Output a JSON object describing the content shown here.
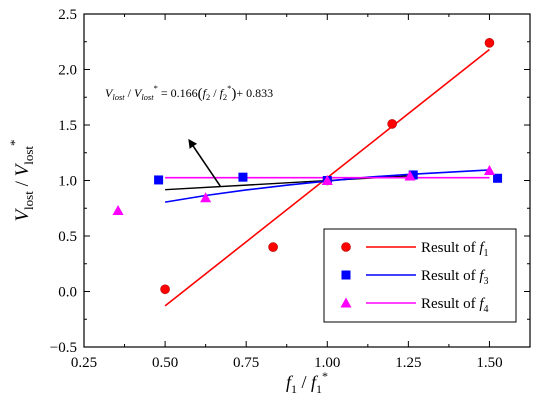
{
  "chart_data": {
    "type": "scatter",
    "xlabel": {
      "base": "f",
      "sub1": "1",
      "mid": " / ",
      "base2": "f",
      "sub2": "1",
      "sup2": "*"
    },
    "ylabel": {
      "base": "V",
      "sub1": "lost",
      "mid": " / ",
      "base2": "V",
      "sub2": "lost",
      "sup2": "*"
    },
    "xlim": [
      0.25,
      1.625
    ],
    "ylim": [
      -0.5,
      2.5
    ],
    "xticks": [
      0.25,
      0.5,
      0.75,
      1.0,
      1.25,
      1.5
    ],
    "xtick_labels": [
      "0.25",
      "0.50",
      "0.75",
      "1.00",
      "1.25",
      "1.50"
    ],
    "yticks": [
      -0.5,
      0.0,
      0.5,
      1.0,
      1.5,
      2.0,
      2.5
    ],
    "ytick_labels": [
      "−0.5",
      "0.0",
      "0.5",
      "1.0",
      "1.5",
      "2.0",
      "2.5"
    ],
    "grid": false,
    "legend_position": "bottom-right",
    "series": [
      {
        "name": "Result of f1",
        "legend": {
          "prefix": "Result of ",
          "var": "f",
          "sub": "1"
        },
        "color": "#ff0000",
        "marker": "circle",
        "points": {
          "x": [
            0.5,
            0.833,
            1.0,
            1.2,
            1.5
          ],
          "y": [
            0.02,
            0.4,
            1.0,
            1.51,
            2.24
          ]
        },
        "fit": {
          "kind": "linear",
          "x": [
            0.5,
            1.5
          ],
          "y": [
            -0.13,
            2.18
          ]
        }
      },
      {
        "name": "Result of f3",
        "legend": {
          "prefix": "Result of ",
          "var": "f",
          "sub": "3"
        },
        "color": "#0000ff",
        "marker": "square",
        "points": {
          "x": [
            0.48,
            0.74,
            1.0,
            1.265,
            1.525
          ],
          "y": [
            1.005,
            1.03,
            1.0,
            1.05,
            1.02
          ]
        },
        "fit": {
          "kind": "curve",
          "x": [
            0.5,
            0.625,
            0.75,
            0.875,
            1.0,
            1.125,
            1.25,
            1.375,
            1.5
          ],
          "y": [
            0.805,
            0.865,
            0.915,
            0.958,
            0.995,
            1.03,
            1.055,
            1.075,
            1.095
          ]
        }
      },
      {
        "name": "Result of f4",
        "legend": {
          "prefix": "Result of ",
          "var": "f",
          "sub": "4"
        },
        "color": "#ff00ff",
        "marker": "triangle",
        "points": {
          "x": [
            0.355,
            0.625,
            1.0,
            1.255,
            1.5
          ],
          "y": [
            0.73,
            0.845,
            1.0,
            1.04,
            1.09
          ]
        },
        "fit": {
          "kind": "linear",
          "x": [
            0.5,
            1.5
          ],
          "y": [
            1.025,
            1.025
          ]
        }
      }
    ],
    "extra_line": {
      "color": "#000000",
      "x": [
        0.5,
        1.25
      ],
      "y": [
        0.917,
        1.041
      ]
    },
    "annotation": {
      "prefix_lhs": "V",
      "lhs_sub": "lost",
      "slash": " / ",
      "lhs2": "V",
      "lhs2_sub": "lost",
      "lhs2_sup": "*",
      "eq": " = 0.166",
      "f": "f",
      "f_sub": "2",
      "f2": "f",
      "f2_sub": "2",
      "f2_sup": "*",
      "tail": "+ 0.833",
      "arrow_from": [
        0.67,
        0.95
      ],
      "arrow_to": [
        0.575,
        1.36
      ]
    }
  }
}
